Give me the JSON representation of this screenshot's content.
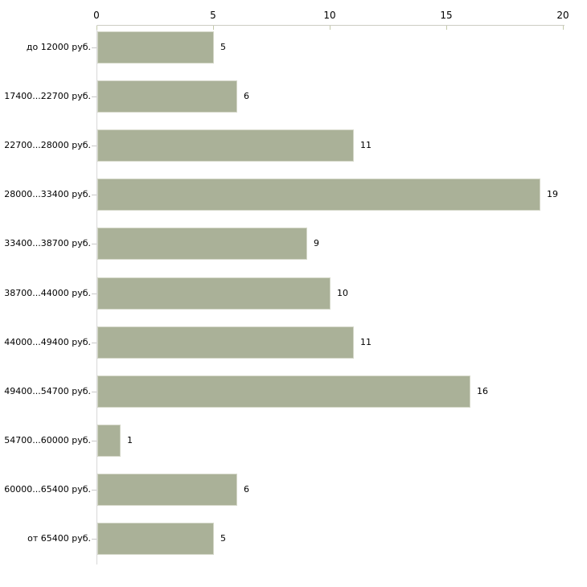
{
  "chart_data": {
    "type": "bar",
    "orientation": "horizontal",
    "title": "",
    "xlabel": "",
    "ylabel": "",
    "categories": [
      "до 12000 руб.",
      "17400...22700 руб.",
      "22700...28000 руб.",
      "28000...33400 руб.",
      "33400...38700 руб.",
      "38700...44000 руб.",
      "44000...49400 руб.",
      "49400...54700 руб.",
      "54700...60000 руб.",
      "60000...65400 руб.",
      "от 65400 руб."
    ],
    "values": [
      5,
      6,
      11,
      19,
      9,
      10,
      11,
      16,
      1,
      6,
      5
    ],
    "value_labels": [
      "5",
      "6",
      "11",
      "19",
      "9",
      "10",
      "11",
      "16",
      "1",
      "6",
      "5"
    ],
    "x_ticks": [
      "0",
      "5",
      "10",
      "15",
      "20"
    ],
    "x_tick_values": [
      0,
      5,
      10,
      15,
      20
    ],
    "xlim": [
      0,
      20
    ],
    "axis_position": "top",
    "grid": false,
    "legend": false
  },
  "colors": {
    "background": "#ffffff",
    "bar_fill": "#aab198",
    "bar_border": "#d4d7c8",
    "x_axis_line": "#ccccc4",
    "x_tick_mark": "#c4caaa",
    "y_axis_line": "#d8d8d8",
    "category_tick": "#c8c8c8",
    "text": "#000000"
  }
}
